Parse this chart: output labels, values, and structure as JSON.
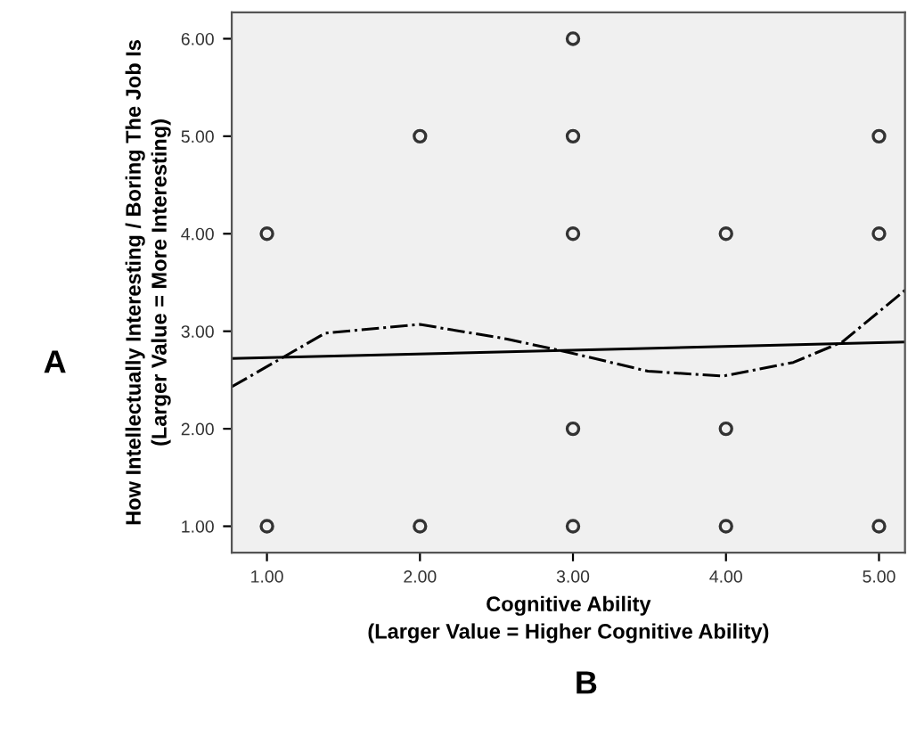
{
  "chart_data": {
    "type": "scatter",
    "xlabel": "Cognitive Ability\n(Larger Value = Higher Cognitive Ability)",
    "ylabel": "How Intellectually Interesting / Boring The Job Is\n(Larger Value = More Interesting)",
    "annotations": [
      "A",
      "B"
    ],
    "xlim": [
      0.77,
      5.17
    ],
    "ylim": [
      0.73,
      6.27
    ],
    "xticks": [
      {
        "value": 1,
        "label": "1.00"
      },
      {
        "value": 2,
        "label": "2.00"
      },
      {
        "value": 3,
        "label": "3.00"
      },
      {
        "value": 4,
        "label": "4.00"
      },
      {
        "value": 5,
        "label": "5.00"
      }
    ],
    "yticks": [
      {
        "value": 1,
        "label": "1.00"
      },
      {
        "value": 2,
        "label": "2.00"
      },
      {
        "value": 3,
        "label": "3.00"
      },
      {
        "value": 4,
        "label": "4.00"
      },
      {
        "value": 5,
        "label": "5.00"
      },
      {
        "value": 6,
        "label": "6.00"
      }
    ],
    "grid": false,
    "legend": false,
    "series": [
      {
        "color": "#333333",
        "marker": "circle",
        "x": [
          1,
          1,
          2,
          2,
          3,
          3,
          3,
          3,
          3,
          4,
          4,
          4,
          5,
          5,
          5
        ],
        "values": [
          4,
          1,
          5,
          1,
          6,
          5,
          4,
          2,
          1,
          4,
          2,
          1,
          5,
          4,
          1
        ]
      },
      {
        "type": "line",
        "color": "#000000",
        "line_style": "solid",
        "marker": "none",
        "x": [
          0.77,
          5.17
        ],
        "values": [
          2.72,
          2.89
        ]
      },
      {
        "type": "line",
        "color": "#000000",
        "line_style": "dashdot",
        "marker": "none",
        "x": [
          0.77,
          1.38,
          2.0,
          2.57,
          2.98,
          3.49,
          3.98,
          4.44,
          4.76,
          5.17
        ],
        "values": [
          2.43,
          2.98,
          3.07,
          2.92,
          2.78,
          2.59,
          2.54,
          2.68,
          2.89,
          3.42
        ]
      }
    ]
  }
}
